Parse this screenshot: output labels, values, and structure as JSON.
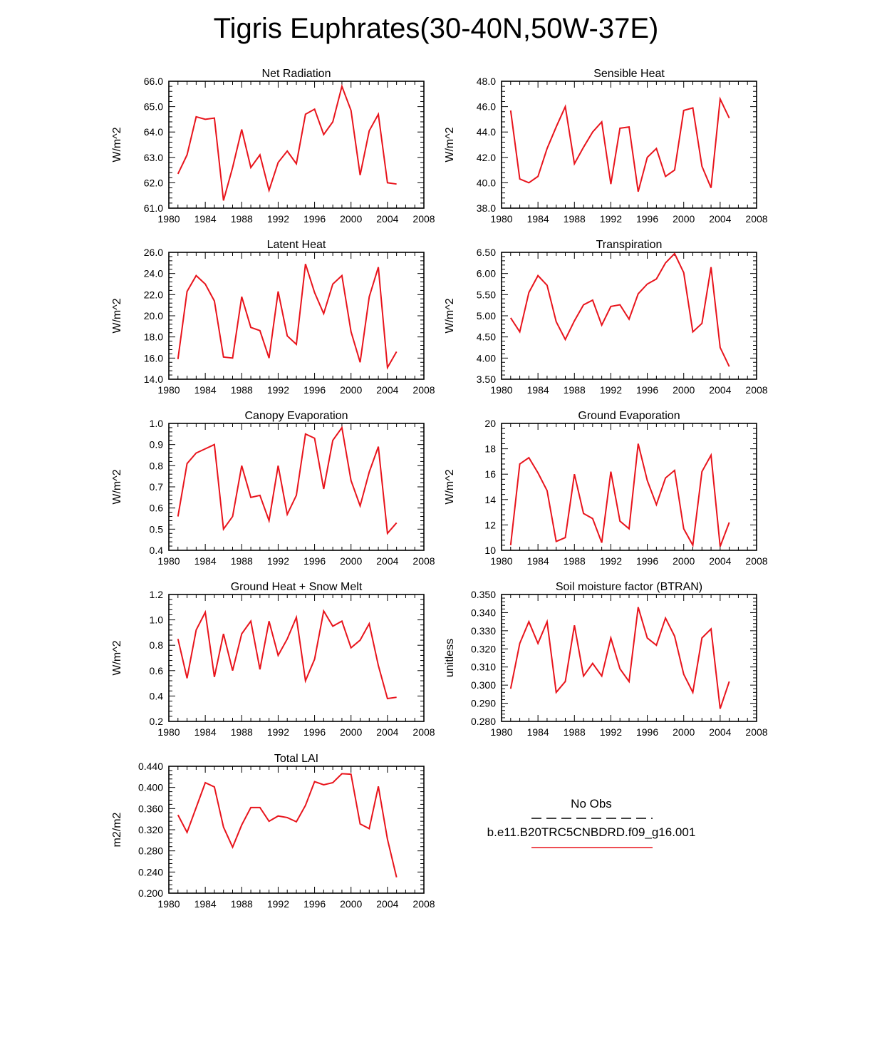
{
  "page_title": "Tigris Euphrates(30-40N,50W-37E)",
  "legend": {
    "obs_label": "No Obs",
    "model_label": "b.e11.B20TRC5CNBDRD.f09_g16.001",
    "obs_style": "black dashed",
    "model_color": "#e8141c"
  },
  "chart_data": [
    {
      "type": "line",
      "title": "Net Radiation",
      "ylabel": "W/m^2",
      "xlim": [
        1980,
        2008
      ],
      "xticks": [
        1980,
        1984,
        1988,
        1992,
        1996,
        2000,
        2004,
        2008
      ],
      "ylim": [
        61.0,
        66.0
      ],
      "yticks": [
        "61.0",
        "62.0",
        "63.0",
        "64.0",
        "65.0",
        "66.0"
      ],
      "x": [
        1981,
        1982,
        1983,
        1984,
        1985,
        1986,
        1987,
        1988,
        1989,
        1990,
        1991,
        1992,
        1993,
        1994,
        1995,
        1996,
        1997,
        1998,
        1999,
        2000,
        2001,
        2002,
        2003,
        2004,
        2005
      ],
      "series": [
        {
          "name": "b.e11.B20TRC5CNBDRD.f09_g16.001",
          "color": "#e8141c",
          "values": [
            62.35,
            63.1,
            64.6,
            64.5,
            64.55,
            61.3,
            62.6,
            64.1,
            62.6,
            63.1,
            61.7,
            62.8,
            63.25,
            62.75,
            64.7,
            64.9,
            63.9,
            64.4,
            65.8,
            64.85,
            62.3,
            64.05,
            64.7,
            62.0,
            61.95
          ]
        }
      ]
    },
    {
      "type": "line",
      "title": "Sensible Heat",
      "ylabel": "W/m^2",
      "xlim": [
        1980,
        2008
      ],
      "xticks": [
        1980,
        1984,
        1988,
        1992,
        1996,
        2000,
        2004,
        2008
      ],
      "ylim": [
        38.0,
        48.0
      ],
      "yticks": [
        "38.0",
        "40.0",
        "42.0",
        "44.0",
        "46.0",
        "48.0"
      ],
      "x": [
        1981,
        1982,
        1983,
        1984,
        1985,
        1986,
        1987,
        1988,
        1989,
        1990,
        1991,
        1992,
        1993,
        1994,
        1995,
        1996,
        1997,
        1998,
        1999,
        2000,
        2001,
        2002,
        2003,
        2004,
        2005
      ],
      "series": [
        {
          "name": "b.e11.B20TRC5CNBDRD.f09_g16.001",
          "color": "#e8141c",
          "values": [
            45.7,
            40.3,
            40.0,
            40.5,
            42.7,
            44.4,
            46.0,
            41.5,
            42.8,
            44.0,
            44.8,
            39.9,
            44.3,
            44.4,
            39.3,
            42.0,
            42.7,
            40.5,
            41.0,
            45.7,
            45.9,
            41.3,
            39.6,
            46.6,
            45.1
          ]
        }
      ]
    },
    {
      "type": "line",
      "title": "Latent Heat",
      "ylabel": "W/m^2",
      "xlim": [
        1980,
        2008
      ],
      "xticks": [
        1980,
        1984,
        1988,
        1992,
        1996,
        2000,
        2004,
        2008
      ],
      "ylim": [
        14.0,
        26.0
      ],
      "yticks": [
        "14.0",
        "16.0",
        "18.0",
        "20.0",
        "22.0",
        "24.0",
        "26.0"
      ],
      "x": [
        1981,
        1982,
        1983,
        1984,
        1985,
        1986,
        1987,
        1988,
        1989,
        1990,
        1991,
        1992,
        1993,
        1994,
        1995,
        1996,
        1997,
        1998,
        1999,
        2000,
        2001,
        2002,
        2003,
        2004,
        2005
      ],
      "series": [
        {
          "name": "b.e11.B20TRC5CNBDRD.f09_g16.001",
          "color": "#e8141c",
          "values": [
            15.9,
            22.3,
            23.8,
            23.0,
            21.4,
            16.1,
            16.0,
            21.8,
            18.9,
            18.6,
            16.0,
            22.3,
            18.1,
            17.3,
            24.9,
            22.2,
            20.2,
            23.0,
            23.8,
            18.5,
            15.6,
            21.8,
            24.6,
            15.1,
            16.6
          ]
        }
      ]
    },
    {
      "type": "line",
      "title": "Transpiration",
      "ylabel": "W/m^2",
      "xlim": [
        1980,
        2008
      ],
      "xticks": [
        1980,
        1984,
        1988,
        1992,
        1996,
        2000,
        2004,
        2008
      ],
      "ylim": [
        3.5,
        6.5
      ],
      "yticks": [
        "3.50",
        "4.00",
        "4.50",
        "5.00",
        "5.50",
        "6.00",
        "6.50"
      ],
      "x": [
        1981,
        1982,
        1983,
        1984,
        1985,
        1986,
        1987,
        1988,
        1989,
        1990,
        1991,
        1992,
        1993,
        1994,
        1995,
        1996,
        1997,
        1998,
        1999,
        2000,
        2001,
        2002,
        2003,
        2004,
        2005
      ],
      "series": [
        {
          "name": "b.e11.B20TRC5CNBDRD.f09_g16.001",
          "color": "#e8141c",
          "values": [
            4.95,
            4.62,
            5.55,
            5.95,
            5.72,
            4.86,
            4.44,
            4.88,
            5.26,
            5.37,
            4.78,
            5.22,
            5.26,
            4.92,
            5.52,
            5.75,
            5.87,
            6.25,
            6.47,
            6.02,
            4.62,
            4.82,
            6.15,
            4.25,
            3.8
          ]
        }
      ]
    },
    {
      "type": "line",
      "title": "Canopy Evaporation",
      "ylabel": "W/m^2",
      "xlim": [
        1980,
        2008
      ],
      "xticks": [
        1980,
        1984,
        1988,
        1992,
        1996,
        2000,
        2004,
        2008
      ],
      "ylim": [
        0.4,
        1.0
      ],
      "yticks": [
        "0.4",
        "0.5",
        "0.6",
        "0.7",
        "0.8",
        "0.9",
        "1.0"
      ],
      "x": [
        1981,
        1982,
        1983,
        1984,
        1985,
        1986,
        1987,
        1988,
        1989,
        1990,
        1991,
        1992,
        1993,
        1994,
        1995,
        1996,
        1997,
        1998,
        1999,
        2000,
        2001,
        2002,
        2003,
        2004,
        2005
      ],
      "series": [
        {
          "name": "b.e11.B20TRC5CNBDRD.f09_g16.001",
          "color": "#e8141c",
          "values": [
            0.56,
            0.81,
            0.86,
            0.88,
            0.9,
            0.5,
            0.56,
            0.8,
            0.65,
            0.66,
            0.54,
            0.8,
            0.57,
            0.66,
            0.95,
            0.93,
            0.69,
            0.92,
            0.98,
            0.73,
            0.61,
            0.77,
            0.89,
            0.48,
            0.53
          ]
        }
      ]
    },
    {
      "type": "line",
      "title": "Ground Evaporation",
      "ylabel": "W/m^2",
      "xlim": [
        1980,
        2008
      ],
      "xticks": [
        1980,
        1984,
        1988,
        1992,
        1996,
        2000,
        2004,
        2008
      ],
      "ylim": [
        10,
        20
      ],
      "yticks": [
        "10",
        "12",
        "14",
        "16",
        "18",
        "20"
      ],
      "x": [
        1981,
        1982,
        1983,
        1984,
        1985,
        1986,
        1987,
        1988,
        1989,
        1990,
        1991,
        1992,
        1993,
        1994,
        1995,
        1996,
        1997,
        1998,
        1999,
        2000,
        2001,
        2002,
        2003,
        2004,
        2005
      ],
      "series": [
        {
          "name": "b.e11.B20TRC5CNBDRD.f09_g16.001",
          "color": "#e8141c",
          "values": [
            10.4,
            16.8,
            17.3,
            16.1,
            14.7,
            10.7,
            11.0,
            16.0,
            12.9,
            12.5,
            10.6,
            16.2,
            12.3,
            11.7,
            18.4,
            15.5,
            13.6,
            15.7,
            16.3,
            11.7,
            10.4,
            16.2,
            17.5,
            10.3,
            12.2
          ]
        }
      ]
    },
    {
      "type": "line",
      "title": "Ground Heat + Snow Melt",
      "ylabel": "W/m^2",
      "xlim": [
        1980,
        2008
      ],
      "xticks": [
        1980,
        1984,
        1988,
        1992,
        1996,
        2000,
        2004,
        2008
      ],
      "ylim": [
        0.2,
        1.2
      ],
      "yticks": [
        "0.2",
        "0.4",
        "0.6",
        "0.8",
        "1.0",
        "1.2"
      ],
      "x": [
        1981,
        1982,
        1983,
        1984,
        1985,
        1986,
        1987,
        1988,
        1989,
        1990,
        1991,
        1992,
        1993,
        1994,
        1995,
        1996,
        1997,
        1998,
        1999,
        2000,
        2001,
        2002,
        2003,
        2004,
        2005
      ],
      "series": [
        {
          "name": "b.e11.B20TRC5CNBDRD.f09_g16.001",
          "color": "#e8141c",
          "values": [
            0.85,
            0.54,
            0.92,
            1.06,
            0.55,
            0.89,
            0.6,
            0.89,
            0.99,
            0.61,
            0.99,
            0.72,
            0.85,
            1.02,
            0.52,
            0.69,
            1.07,
            0.95,
            0.99,
            0.78,
            0.84,
            0.97,
            0.64,
            0.38,
            0.39
          ]
        }
      ]
    },
    {
      "type": "line",
      "title": "Soil moisture factor (BTRAN)",
      "ylabel": "unitless",
      "xlim": [
        1980,
        2008
      ],
      "xticks": [
        1980,
        1984,
        1988,
        1992,
        1996,
        2000,
        2004,
        2008
      ],
      "ylim": [
        0.28,
        0.35
      ],
      "yticks": [
        "0.280",
        "0.290",
        "0.300",
        "0.310",
        "0.320",
        "0.330",
        "0.340",
        "0.350"
      ],
      "x": [
        1981,
        1982,
        1983,
        1984,
        1985,
        1986,
        1987,
        1988,
        1989,
        1990,
        1991,
        1992,
        1993,
        1994,
        1995,
        1996,
        1997,
        1998,
        1999,
        2000,
        2001,
        2002,
        2003,
        2004,
        2005
      ],
      "series": [
        {
          "name": "b.e11.B20TRC5CNBDRD.f09_g16.001",
          "color": "#e8141c",
          "values": [
            0.298,
            0.323,
            0.335,
            0.323,
            0.335,
            0.296,
            0.302,
            0.333,
            0.305,
            0.312,
            0.305,
            0.326,
            0.309,
            0.302,
            0.343,
            0.326,
            0.322,
            0.337,
            0.327,
            0.306,
            0.296,
            0.326,
            0.331,
            0.287,
            0.302
          ]
        }
      ]
    },
    {
      "type": "line",
      "title": "Total LAI",
      "ylabel": "m2/m2",
      "xlim": [
        1980,
        2008
      ],
      "xticks": [
        1980,
        1984,
        1988,
        1992,
        1996,
        2000,
        2004,
        2008
      ],
      "ylim": [
        0.2,
        0.44
      ],
      "yticks": [
        "0.200",
        "0.240",
        "0.280",
        "0.320",
        "0.360",
        "0.400",
        "0.440"
      ],
      "x": [
        1981,
        1982,
        1983,
        1984,
        1985,
        1986,
        1987,
        1988,
        1989,
        1990,
        1991,
        1992,
        1993,
        1994,
        1995,
        1996,
        1997,
        1998,
        1999,
        2000,
        2001,
        2002,
        2003,
        2004,
        2005
      ],
      "series": [
        {
          "name": "b.e11.B20TRC5CNBDRD.f09_g16.001",
          "color": "#e8141c",
          "values": [
            0.348,
            0.315,
            0.362,
            0.409,
            0.401,
            0.325,
            0.287,
            0.329,
            0.362,
            0.362,
            0.336,
            0.346,
            0.343,
            0.335,
            0.366,
            0.411,
            0.405,
            0.409,
            0.426,
            0.425,
            0.331,
            0.322,
            0.402,
            0.302,
            0.23
          ]
        }
      ]
    }
  ]
}
